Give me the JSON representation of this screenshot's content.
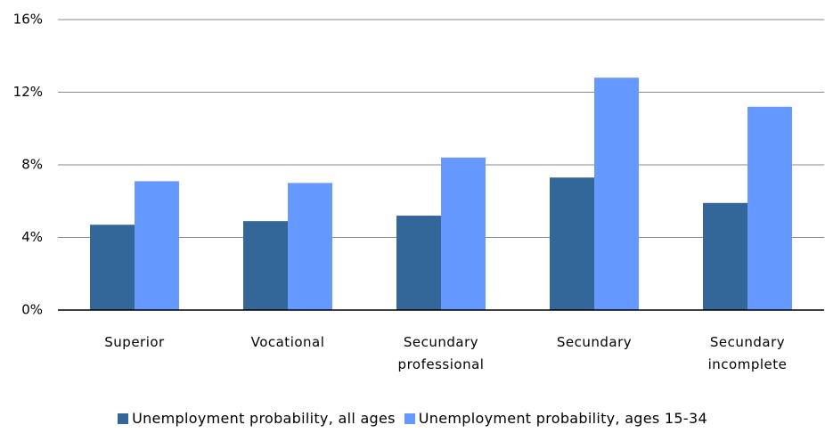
{
  "chart_data": {
    "type": "bar",
    "categories": [
      "Superior",
      "Vocational",
      "Secundary professional",
      "Secundary",
      "Secundary incomplete"
    ],
    "series": [
      {
        "name": "Unemployment probability, all ages",
        "color": "#336699",
        "values": [
          4.7,
          4.9,
          5.2,
          7.3,
          5.9
        ]
      },
      {
        "name": "Unemployment probability, ages 15-34",
        "color": "#6699ff",
        "values": [
          7.1,
          7.0,
          8.4,
          12.8,
          11.2
        ]
      }
    ],
    "ylim": [
      0,
      16
    ],
    "yticks": [
      {
        "value": 0,
        "label": "0%"
      },
      {
        "value": 4,
        "label": "4%"
      },
      {
        "value": 8,
        "label": "8%"
      },
      {
        "value": 12,
        "label": "12%"
      },
      {
        "value": 16,
        "label": "16%"
      }
    ],
    "grid": true,
    "legend": "bottom"
  }
}
